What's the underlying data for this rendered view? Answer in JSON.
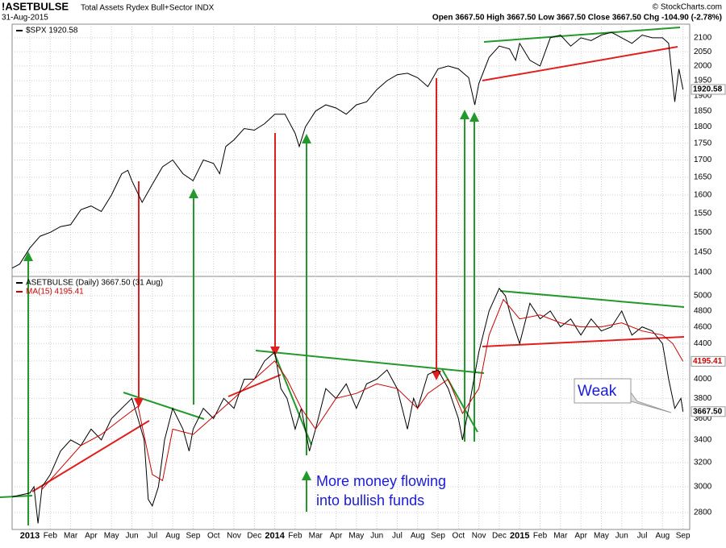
{
  "header": {
    "symbol": "!ASETBULSE",
    "description": "Total Assets Rydex Bull+Sector INDX",
    "date": "31-Aug-2015",
    "quote": "Open 3667.50  High 3667.50  Low 3667.50  Close 3667.50  Chg -104.90 (-2.78%)",
    "credit": "© StockCharts.com"
  },
  "annotations": {
    "weak": "Weak",
    "flow_1": "More money flowing",
    "flow_2": "into bullish funds"
  },
  "chart_data": [
    {
      "type": "line",
      "log_scale": true,
      "grid": true,
      "xlim": [
        -0.87,
        32.33
      ],
      "ylim": [
        1390,
        2150
      ],
      "yticks": [
        1400,
        1450,
        1500,
        1550,
        1600,
        1650,
        1700,
        1750,
        1800,
        1850,
        1900,
        1950,
        2000,
        2050,
        2100
      ],
      "xticks": [
        {
          "value": 0,
          "label": "2013"
        },
        {
          "value": 1,
          "label": "Feb"
        },
        {
          "value": 2,
          "label": "Mar"
        },
        {
          "value": 3,
          "label": "Apr"
        },
        {
          "value": 4,
          "label": "May"
        },
        {
          "value": 5,
          "label": "Jun"
        },
        {
          "value": 6,
          "label": "Jul"
        },
        {
          "value": 7,
          "label": "Aug"
        },
        {
          "value": 8,
          "label": "Sep"
        },
        {
          "value": 9,
          "label": "Oct"
        },
        {
          "value": 10,
          "label": "Nov"
        },
        {
          "value": 11,
          "label": "Dec"
        },
        {
          "value": 12,
          "label": "2014"
        },
        {
          "value": 13,
          "label": "Feb"
        },
        {
          "value": 14,
          "label": "Mar"
        },
        {
          "value": 15,
          "label": "Apr"
        },
        {
          "value": 16,
          "label": "May"
        },
        {
          "value": 17,
          "label": "Jun"
        },
        {
          "value": 18,
          "label": "Jul"
        },
        {
          "value": 19,
          "label": "Aug"
        },
        {
          "value": 20,
          "label": "Sep"
        },
        {
          "value": 21,
          "label": "Oct"
        },
        {
          "value": 22,
          "label": "Nov"
        },
        {
          "value": 23,
          "label": "Dec"
        },
        {
          "value": 24,
          "label": "2015"
        },
        {
          "value": 25,
          "label": "Feb"
        },
        {
          "value": 26,
          "label": "Mar"
        },
        {
          "value": 27,
          "label": "Apr"
        },
        {
          "value": 28,
          "label": "May"
        },
        {
          "value": 29,
          "label": "Jun"
        },
        {
          "value": 30,
          "label": "Jul"
        },
        {
          "value": 31,
          "label": "Aug"
        },
        {
          "value": 32,
          "label": "Sep"
        }
      ],
      "series": [
        {
          "name": "$SPX 1920.58",
          "color": "#000000",
          "last_value": 1920.58,
          "x": [
            -0.87,
            -0.5,
            0,
            0.5,
            1,
            1.5,
            2,
            2.5,
            3,
            3.5,
            4,
            4.5,
            4.8,
            5,
            5.5,
            5.8,
            6,
            6.5,
            7,
            7.5,
            8,
            8.5,
            9,
            9.3,
            9.6,
            10,
            10.5,
            11,
            11.5,
            12,
            12.5,
            13,
            13.2,
            13.5,
            14,
            14.5,
            15,
            15.5,
            16,
            16.5,
            17,
            17.5,
            18,
            18.5,
            19,
            19.5,
            20,
            20.5,
            21,
            21.5,
            21.8,
            22,
            22.5,
            23,
            23.5,
            23.8,
            24,
            24.5,
            25,
            25.5,
            26,
            26.5,
            27,
            27.5,
            28,
            28.5,
            29,
            29.5,
            30,
            30.5,
            31,
            31.3,
            31.6,
            31.8,
            32
          ],
          "values": [
            1410,
            1420,
            1460,
            1490,
            1500,
            1515,
            1520,
            1560,
            1570,
            1555,
            1600,
            1660,
            1670,
            1640,
            1580,
            1610,
            1630,
            1680,
            1700,
            1660,
            1640,
            1700,
            1690,
            1660,
            1740,
            1760,
            1795,
            1790,
            1810,
            1840,
            1840,
            1780,
            1740,
            1800,
            1850,
            1870,
            1860,
            1840,
            1870,
            1880,
            1920,
            1950,
            1970,
            1975,
            1960,
            1930,
            1990,
            2000,
            1990,
            1960,
            1870,
            1940,
            2030,
            2070,
            2060,
            2020,
            2080,
            2020,
            2000,
            2100,
            2110,
            2070,
            2100,
            2090,
            2110,
            2120,
            2100,
            2080,
            2110,
            2100,
            2100,
            2080,
            1880,
            1990,
            1920.58
          ]
        }
      ]
    },
    {
      "type": "line",
      "log_scale": true,
      "grid": true,
      "xlim": [
        -0.87,
        32.33
      ],
      "ylim": [
        2676,
        5265
      ],
      "yticks": [
        2800,
        3000,
        3200,
        3400,
        3600,
        3800,
        4000,
        4200,
        4400,
        4600,
        4800,
        5000
      ],
      "series": [
        {
          "name": "ASETBULSE (Daily) 3667.50 (31 Aug)",
          "color": "#000000",
          "last_value_label": "3667.50",
          "x": [
            -0.87,
            0,
            0.2,
            0.4,
            0.6,
            1,
            1.5,
            2,
            2.5,
            3,
            3.5,
            4,
            4.5,
            5,
            5.3,
            5.6,
            5.8,
            6,
            6.3,
            6.6,
            7,
            7.5,
            7.8,
            8,
            8.5,
            9,
            9.5,
            10,
            10.5,
            11,
            11.5,
            12,
            12.3,
            12.6,
            13,
            13.3,
            13.7,
            14,
            14.5,
            15,
            15.5,
            16,
            16.5,
            17,
            17.5,
            18,
            18.5,
            18.8,
            19,
            19.5,
            20,
            20.5,
            21,
            21.2,
            21.5,
            22,
            22.5,
            23,
            23.3,
            23.6,
            24,
            24.5,
            25,
            25.5,
            26,
            26.5,
            27,
            27.5,
            28,
            28.5,
            29,
            29.5,
            30,
            30.5,
            31,
            31.3,
            31.6,
            31.9,
            32
          ],
          "values": [
            2920,
            2950,
            3000,
            2720,
            3000,
            3100,
            3300,
            3400,
            3350,
            3500,
            3400,
            3600,
            3700,
            3800,
            3600,
            3400,
            2900,
            2850,
            3000,
            3400,
            3700,
            3500,
            3300,
            3500,
            3700,
            3600,
            3800,
            3700,
            4000,
            4000,
            4200,
            4300,
            3900,
            3800,
            3500,
            3700,
            3300,
            3500,
            3900,
            3800,
            3950,
            3700,
            3950,
            4000,
            4100,
            3900,
            3500,
            3800,
            3700,
            4050,
            4100,
            3900,
            3600,
            3400,
            3700,
            4300,
            4800,
            5100,
            5000,
            4700,
            4400,
            4900,
            4700,
            4800,
            4600,
            4700,
            4500,
            4700,
            4550,
            4600,
            4800,
            4500,
            4600,
            4550,
            4400,
            4000,
            3700,
            3800,
            3667.5
          ]
        },
        {
          "name": "MA(15) 4195.41",
          "color": "#cc0000",
          "last_value": 4195.41,
          "x": [
            0.6,
            1.5,
            2.5,
            3.5,
            4.5,
            5.3,
            6,
            6.5,
            7,
            8,
            9,
            10,
            11,
            12,
            12.6,
            13.3,
            14,
            15,
            16,
            17,
            18,
            19,
            19.5,
            20.5,
            21.2,
            22,
            22.5,
            23.2,
            24,
            25,
            26,
            27,
            28,
            29,
            30,
            31,
            31.5,
            32
          ],
          "values": [
            2980,
            3150,
            3350,
            3450,
            3600,
            3720,
            3100,
            3050,
            3500,
            3450,
            3620,
            3800,
            4000,
            4200,
            4000,
            3700,
            3500,
            3800,
            3850,
            3950,
            3900,
            3700,
            3850,
            4000,
            3650,
            3900,
            4500,
            4950,
            4700,
            4750,
            4650,
            4600,
            4600,
            4650,
            4550,
            4500,
            4400,
            4195.41
          ]
        }
      ]
    }
  ]
}
